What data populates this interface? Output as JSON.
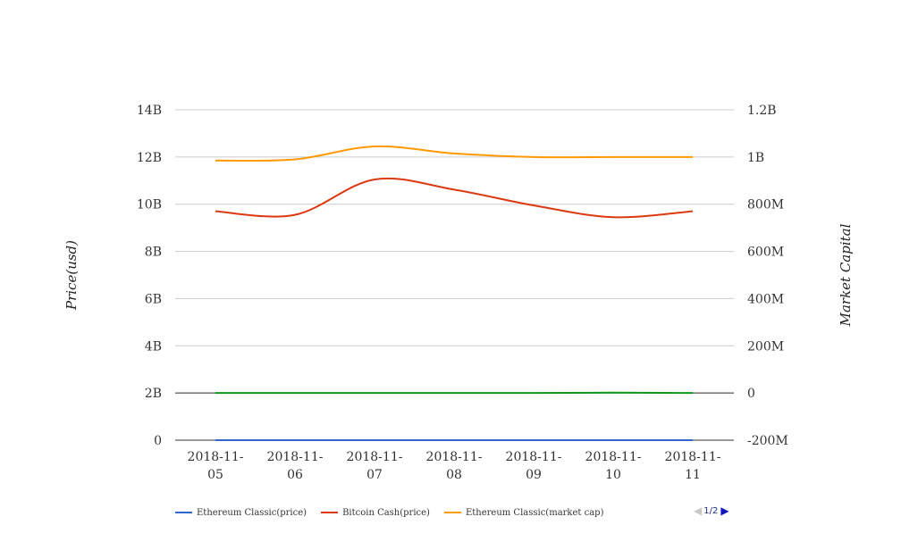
{
  "chart_data": {
    "type": "line",
    "categories": [
      "2018-11-05",
      "2018-11-06",
      "2018-11-07",
      "2018-11-08",
      "2018-11-09",
      "2018-11-10",
      "2018-11-11"
    ],
    "category_lines": [
      [
        "2018-11-",
        "05"
      ],
      [
        "2018-11-",
        "06"
      ],
      [
        "2018-11-",
        "07"
      ],
      [
        "2018-11-",
        "08"
      ],
      [
        "2018-11-",
        "09"
      ],
      [
        "2018-11-",
        "10"
      ],
      [
        "2018-11-",
        "11"
      ]
    ],
    "y_left": {
      "label": "Price(usd)",
      "ylim": [
        0,
        14000000000
      ],
      "ticks": [
        0,
        2000000000,
        4000000000,
        6000000000,
        8000000000,
        10000000000,
        12000000000,
        14000000000
      ],
      "tick_labels": [
        "0",
        "2B",
        "4B",
        "6B",
        "8B",
        "10B",
        "12B",
        "14B"
      ]
    },
    "y_right": {
      "label": "Market Capital",
      "ylim": [
        -200000000,
        1200000000
      ],
      "ticks": [
        -200000000,
        0,
        200000000,
        400000000,
        600000000,
        800000000,
        1000000000,
        1200000000
      ],
      "tick_labels": [
        "-200M",
        "0",
        "200M",
        "400M",
        "600M",
        "800M",
        "1B",
        "1.2B"
      ]
    },
    "grid": true,
    "legend_position": "bottom-left",
    "series": [
      {
        "name": "Ethereum Classic(price)",
        "axis": "left",
        "color": "#3366cc",
        "values": [
          9.5,
          9.3,
          9.4,
          9.2,
          9.1,
          9.0,
          8.9
        ]
      },
      {
        "name": "Bitcoin Cash(price)",
        "axis": "right",
        "color": "#dc3912",
        "values": [
          770000000,
          755000000,
          905000000,
          862000000,
          795000000,
          745000000,
          770000000
        ]
      },
      {
        "name": "Ethereum Classic(market cap)",
        "axis": "right",
        "color": "#ff9900",
        "values": [
          985000000,
          990000000,
          1045000000,
          1015000000,
          1000000000,
          1000000000,
          1000000000
        ]
      },
      {
        "axis": "right",
        "color": "#109618",
        "values": [
          0,
          0,
          0,
          0,
          0,
          1500000,
          0
        ]
      }
    ]
  },
  "pager": {
    "text": "1/2",
    "prev_icon": "triangle-left",
    "next_icon": "triangle-right"
  }
}
